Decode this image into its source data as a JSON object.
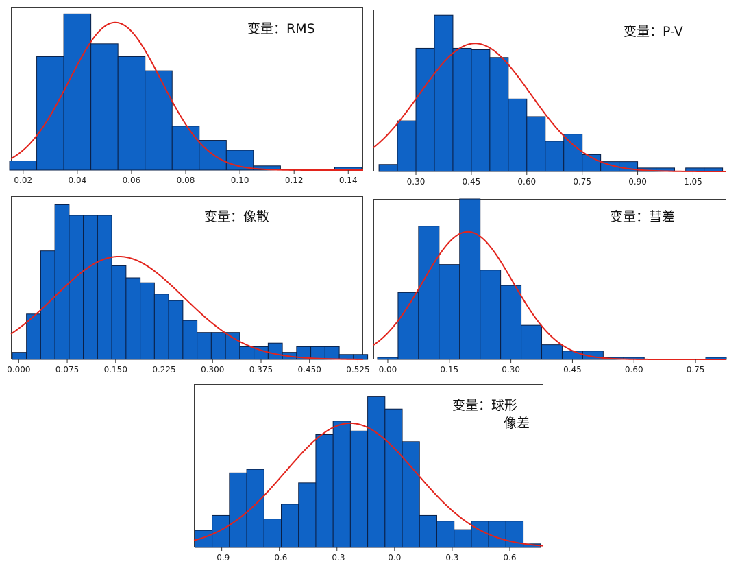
{
  "chart_data": [
    {
      "type": "histogram",
      "label_lines": [
        "变量：RMS"
      ],
      "xlim": [
        0.0155,
        0.1455
      ],
      "ylim": [
        0,
        23
      ],
      "bins": [
        {
          "start": 0.015,
          "end": 0.025,
          "count": 1.3
        },
        {
          "start": 0.025,
          "end": 0.035,
          "count": 16
        },
        {
          "start": 0.035,
          "end": 0.045,
          "count": 22
        },
        {
          "start": 0.045,
          "end": 0.055,
          "count": 17.8
        },
        {
          "start": 0.055,
          "end": 0.065,
          "count": 16
        },
        {
          "start": 0.065,
          "end": 0.075,
          "count": 14
        },
        {
          "start": 0.075,
          "end": 0.085,
          "count": 6.2
        },
        {
          "start": 0.085,
          "end": 0.095,
          "count": 4.2
        },
        {
          "start": 0.095,
          "end": 0.105,
          "count": 2.8
        },
        {
          "start": 0.105,
          "end": 0.115,
          "count": 0.6
        },
        {
          "start": 0.135,
          "end": 0.145,
          "count": 0.4
        }
      ],
      "normal_curve": {
        "mean": 0.054,
        "sd": 0.017,
        "peak": 20.8
      },
      "xticks": [
        0.02,
        0.04,
        0.06,
        0.08,
        0.1,
        0.12,
        0.14
      ],
      "xtick_labels": [
        "0.02",
        "0.04",
        "0.06",
        "0.08",
        "0.10",
        "0.12",
        "0.14"
      ]
    },
    {
      "type": "histogram",
      "label_lines": [
        "变量：P-V"
      ],
      "xlim": [
        0.185,
        1.14
      ],
      "ylim": [
        0,
        23
      ],
      "bins": [
        {
          "start": 0.2,
          "end": 0.25,
          "count": 1
        },
        {
          "start": 0.25,
          "end": 0.3,
          "count": 7.2
        },
        {
          "start": 0.3,
          "end": 0.35,
          "count": 17.5
        },
        {
          "start": 0.35,
          "end": 0.4,
          "count": 22.2
        },
        {
          "start": 0.4,
          "end": 0.45,
          "count": 17.5
        },
        {
          "start": 0.45,
          "end": 0.5,
          "count": 17.3
        },
        {
          "start": 0.5,
          "end": 0.55,
          "count": 16.2
        },
        {
          "start": 0.55,
          "end": 0.6,
          "count": 10.3
        },
        {
          "start": 0.6,
          "end": 0.65,
          "count": 7.8
        },
        {
          "start": 0.65,
          "end": 0.7,
          "count": 4.3
        },
        {
          "start": 0.7,
          "end": 0.75,
          "count": 5.3
        },
        {
          "start": 0.75,
          "end": 0.8,
          "count": 2.4
        },
        {
          "start": 0.8,
          "end": 0.85,
          "count": 1.4
        },
        {
          "start": 0.85,
          "end": 0.9,
          "count": 1.4
        },
        {
          "start": 0.9,
          "end": 0.95,
          "count": 0.5
        },
        {
          "start": 0.95,
          "end": 1.0,
          "count": 0.5
        },
        {
          "start": 1.03,
          "end": 1.08,
          "count": 0.5
        },
        {
          "start": 1.08,
          "end": 1.13,
          "count": 0.5
        }
      ],
      "normal_curve": {
        "mean": 0.46,
        "sd": 0.15,
        "peak": 18.2
      },
      "xticks": [
        0.3,
        0.45,
        0.6,
        0.75,
        0.9,
        1.05
      ],
      "xtick_labels": [
        "0.30",
        "0.45",
        "0.60",
        "0.75",
        "0.90",
        "1.05"
      ]
    },
    {
      "type": "histogram",
      "label_lines": [
        "变量：像散"
      ],
      "xlim": [
        -0.012,
        0.533
      ],
      "ylim": [
        0,
        23
      ],
      "bins": [
        {
          "start": -0.01,
          "end": 0.012,
          "count": 1
        },
        {
          "start": 0.012,
          "end": 0.034,
          "count": 6.4
        },
        {
          "start": 0.034,
          "end": 0.056,
          "count": 15.3
        },
        {
          "start": 0.056,
          "end": 0.078,
          "count": 21.8
        },
        {
          "start": 0.078,
          "end": 0.1,
          "count": 20.3
        },
        {
          "start": 0.1,
          "end": 0.122,
          "count": 20.3
        },
        {
          "start": 0.122,
          "end": 0.144,
          "count": 20.3
        },
        {
          "start": 0.144,
          "end": 0.166,
          "count": 13.2
        },
        {
          "start": 0.166,
          "end": 0.188,
          "count": 11.5
        },
        {
          "start": 0.188,
          "end": 0.21,
          "count": 10.8
        },
        {
          "start": 0.21,
          "end": 0.232,
          "count": 9.2
        },
        {
          "start": 0.232,
          "end": 0.254,
          "count": 8.3
        },
        {
          "start": 0.254,
          "end": 0.276,
          "count": 5.5
        },
        {
          "start": 0.276,
          "end": 0.298,
          "count": 3.8
        },
        {
          "start": 0.298,
          "end": 0.32,
          "count": 3.8
        },
        {
          "start": 0.32,
          "end": 0.342,
          "count": 3.8
        },
        {
          "start": 0.342,
          "end": 0.364,
          "count": 1.8
        },
        {
          "start": 0.364,
          "end": 0.386,
          "count": 1.8
        },
        {
          "start": 0.386,
          "end": 0.408,
          "count": 2.3
        },
        {
          "start": 0.408,
          "end": 0.43,
          "count": 1
        },
        {
          "start": 0.43,
          "end": 0.452,
          "count": 1.8
        },
        {
          "start": 0.452,
          "end": 0.474,
          "count": 1.8
        },
        {
          "start": 0.474,
          "end": 0.496,
          "count": 1.8
        },
        {
          "start": 0.496,
          "end": 0.518,
          "count": 0.7
        },
        {
          "start": 0.518,
          "end": 0.54,
          "count": 0.7
        }
      ],
      "normal_curve": {
        "mean": 0.155,
        "sd": 0.1,
        "peak": 14.5
      },
      "xticks": [
        0.0,
        0.075,
        0.15,
        0.225,
        0.3,
        0.375,
        0.45,
        0.525
      ],
      "xtick_labels": [
        "0.000",
        "0.075",
        "0.150",
        "0.225",
        "0.300",
        "0.375",
        "0.450",
        "0.525"
      ]
    },
    {
      "type": "histogram",
      "label_lines": [
        "变量：彗差"
      ],
      "xlim": [
        -0.035,
        0.825
      ],
      "ylim": [
        0,
        23
      ],
      "bins": [
        {
          "start": -0.025,
          "end": 0.025,
          "count": 0.3
        },
        {
          "start": 0.025,
          "end": 0.075,
          "count": 9.6
        },
        {
          "start": 0.075,
          "end": 0.125,
          "count": 19.1
        },
        {
          "start": 0.125,
          "end": 0.175,
          "count": 13.6
        },
        {
          "start": 0.175,
          "end": 0.225,
          "count": 23
        },
        {
          "start": 0.225,
          "end": 0.275,
          "count": 12.8
        },
        {
          "start": 0.275,
          "end": 0.325,
          "count": 10.6
        },
        {
          "start": 0.325,
          "end": 0.375,
          "count": 4.9
        },
        {
          "start": 0.375,
          "end": 0.425,
          "count": 2.1
        },
        {
          "start": 0.425,
          "end": 0.475,
          "count": 1.2
        },
        {
          "start": 0.475,
          "end": 0.525,
          "count": 1.2
        },
        {
          "start": 0.525,
          "end": 0.575,
          "count": 0.3
        },
        {
          "start": 0.575,
          "end": 0.625,
          "count": 0.3
        },
        {
          "start": 0.775,
          "end": 0.825,
          "count": 0.3
        }
      ],
      "normal_curve": {
        "mean": 0.195,
        "sd": 0.11,
        "peak": 18.3
      },
      "xticks": [
        0.0,
        0.15,
        0.3,
        0.45,
        0.6,
        0.75
      ],
      "xtick_labels": [
        "0.00",
        "0.15",
        "0.30",
        "0.45",
        "0.60",
        "0.75"
      ]
    },
    {
      "type": "histogram",
      "label_lines": [
        "变量：球形",
        "像差"
      ],
      "xlim": [
        -1.045,
        0.775
      ],
      "ylim": [
        0,
        23
      ],
      "bins": [
        {
          "start": -1.04,
          "end": -0.95,
          "count": 2.4
        },
        {
          "start": -0.95,
          "end": -0.86,
          "count": 4.5
        },
        {
          "start": -0.86,
          "end": -0.77,
          "count": 10.5
        },
        {
          "start": -0.77,
          "end": -0.68,
          "count": 11
        },
        {
          "start": -0.68,
          "end": -0.59,
          "count": 4
        },
        {
          "start": -0.59,
          "end": -0.5,
          "count": 6.1
        },
        {
          "start": -0.5,
          "end": -0.41,
          "count": 9.1
        },
        {
          "start": -0.41,
          "end": -0.32,
          "count": 15.9
        },
        {
          "start": -0.32,
          "end": -0.23,
          "count": 17.8
        },
        {
          "start": -0.23,
          "end": -0.14,
          "count": 16.4
        },
        {
          "start": -0.14,
          "end": -0.05,
          "count": 21.3
        },
        {
          "start": -0.05,
          "end": 0.04,
          "count": 19.5
        },
        {
          "start": 0.04,
          "end": 0.13,
          "count": 14.9
        },
        {
          "start": 0.13,
          "end": 0.22,
          "count": 4.5
        },
        {
          "start": 0.22,
          "end": 0.31,
          "count": 3.7
        },
        {
          "start": 0.31,
          "end": 0.4,
          "count": 2.5
        },
        {
          "start": 0.4,
          "end": 0.49,
          "count": 3.7
        },
        {
          "start": 0.49,
          "end": 0.58,
          "count": 3.7
        },
        {
          "start": 0.58,
          "end": 0.67,
          "count": 3.7
        },
        {
          "start": 0.67,
          "end": 0.76,
          "count": 0.5
        }
      ],
      "normal_curve": {
        "mean": -0.23,
        "sd": 0.34,
        "peak": 17.5
      },
      "xticks": [
        -0.9,
        -0.6,
        -0.3,
        0.0,
        0.3,
        0.6
      ],
      "xtick_labels": [
        "-0.9",
        "-0.6",
        "-0.3",
        "0.0",
        "0.3",
        "0.6"
      ]
    }
  ],
  "colors": {
    "bar_fill": "#0f63c6",
    "bar_edge": "#0a1f45",
    "curve": "#e2241c",
    "frame": "#3a3a3a"
  }
}
